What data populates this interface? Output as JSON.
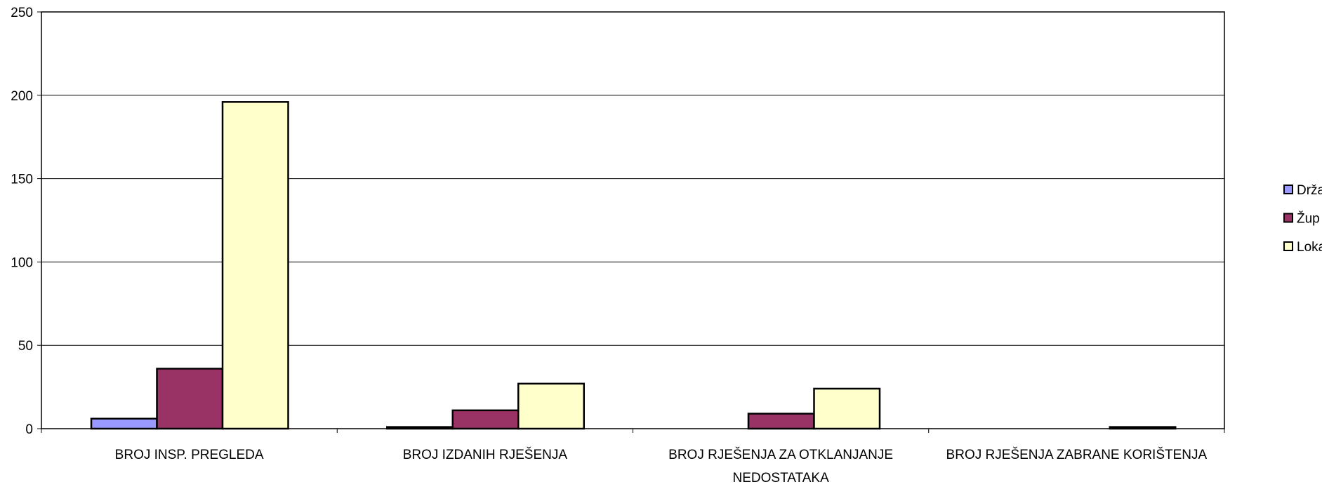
{
  "chart_data": {
    "type": "bar",
    "categories": [
      "BROJ INSP. PREGLEDA",
      "BROJ IZDANIH RJEŠENJA",
      "BROJ RJEŠENJA ZA OTKLANJANJE NEDOSTATAKA",
      "BROJ RJEŠENJA ZABRANE KORIŠTENJA"
    ],
    "series": [
      {
        "name": "Drža",
        "color": "#9999ff",
        "values": [
          6,
          1,
          0,
          0
        ]
      },
      {
        "name": "Žup",
        "color": "#993366",
        "values": [
          36,
          11,
          9,
          0
        ]
      },
      {
        "name": "Loka",
        "color": "#ffffcc",
        "values": [
          196,
          27,
          24,
          1
        ]
      }
    ],
    "ylim": [
      0,
      250
    ],
    "yticks": [
      0,
      50,
      100,
      150,
      200,
      250
    ],
    "grid": true,
    "legend": "right"
  }
}
